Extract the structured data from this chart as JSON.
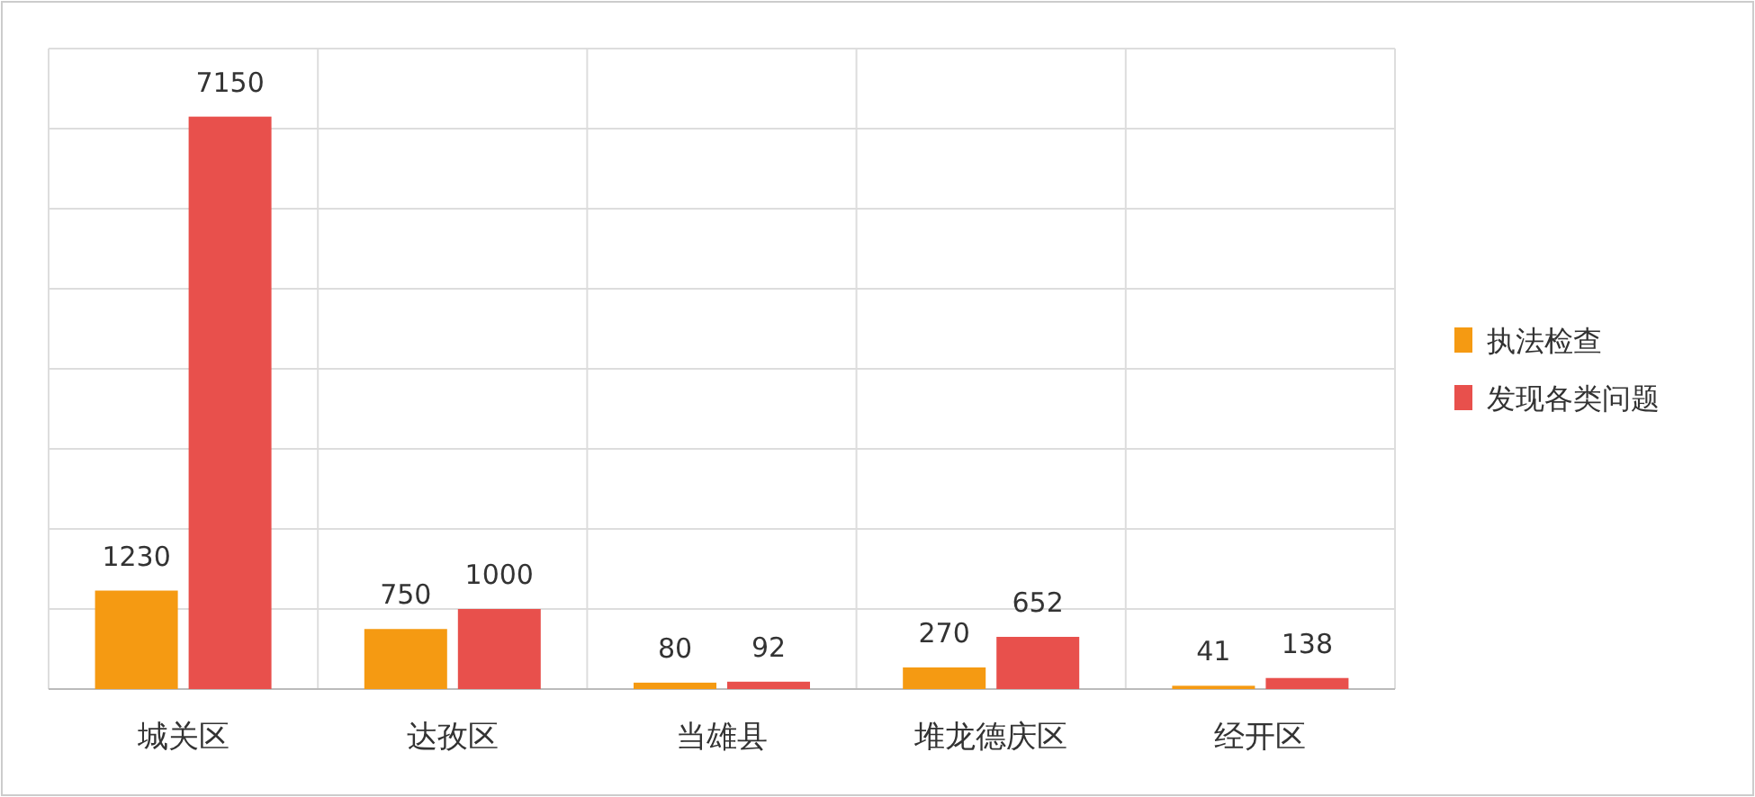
{
  "chart_data": {
    "type": "bar",
    "categories": [
      "城关区",
      "达孜区",
      "当雄县",
      "堆龙德庆区",
      "经开区"
    ],
    "series": [
      {
        "name": "执法检查",
        "color": "#f59a12",
        "values": [
          1230,
          750,
          80,
          270,
          41
        ]
      },
      {
        "name": "发现各类问题",
        "color": "#e8504c",
        "values": [
          7150,
          1000,
          92,
          652,
          138
        ]
      }
    ],
    "ylim": [
      0,
      8000
    ],
    "yticks": [
      {
        "value": 0,
        "label": null
      },
      {
        "value": 1000,
        "label": null
      },
      {
        "value": 2000,
        "label": null
      },
      {
        "value": 3000,
        "label": null
      },
      {
        "value": 4000,
        "label": null
      },
      {
        "value": 5000,
        "label": null
      },
      {
        "value": 6000,
        "label": null
      },
      {
        "value": 7000,
        "label": null
      },
      {
        "value": 8000,
        "label": null
      }
    ],
    "grid": true,
    "legend": "right",
    "data_labels": true
  }
}
